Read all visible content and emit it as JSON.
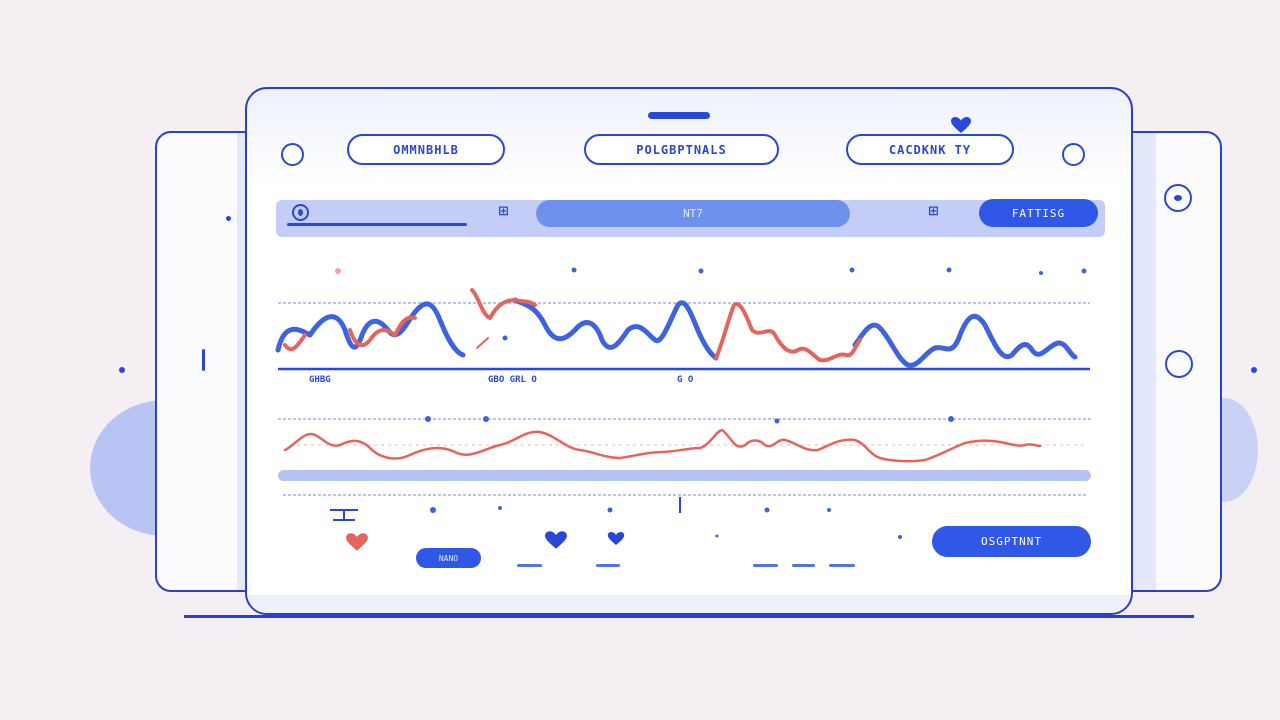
{
  "header": {
    "tabs": [
      {
        "label": "OMMNBHLB"
      },
      {
        "label": "POLGBPTNALS"
      },
      {
        "label": "CACDKNK TY"
      }
    ]
  },
  "toolbar": {
    "search_text": "NT7",
    "filter_label": "FATTISG"
  },
  "chart_top": {
    "x_labels": [
      "GHBG",
      "GBO  GRL O",
      "G O"
    ]
  },
  "footer": {
    "small_button_label": "NANO",
    "primary_button_label": "OSGPTNNT"
  },
  "colors": {
    "accent": "#2f58e6",
    "outline": "#2b47d8",
    "series_blue": "#3d63e0",
    "series_red": "#e5645c"
  },
  "icons": {
    "top_heart": "heart-icon",
    "footer_heart_red": "heart-icon",
    "footer_heart_blue": "heart-icon"
  }
}
